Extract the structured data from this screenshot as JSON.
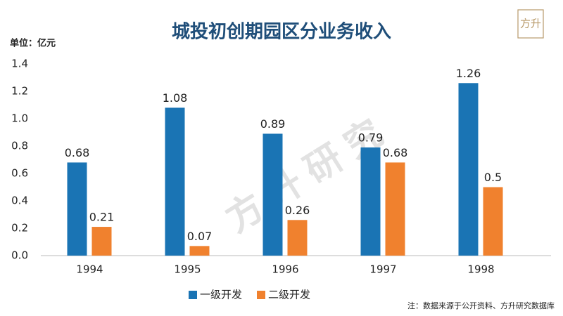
{
  "chart_data": {
    "type": "bar",
    "title": "城投初创期园区分业务收入",
    "unit_label": "单位：亿元",
    "categories": [
      "1994",
      "1995",
      "1996",
      "1997",
      "1998"
    ],
    "series": [
      {
        "name": "一级开发",
        "color": "#1a74b4",
        "values": [
          0.68,
          1.08,
          0.89,
          0.79,
          1.26
        ]
      },
      {
        "name": "二级开发",
        "color": "#f0812e",
        "values": [
          0.21,
          0.07,
          0.26,
          0.68,
          0.5
        ]
      }
    ],
    "ylim": [
      0,
      1.4
    ],
    "yticks": [
      {
        "value": 0,
        "label": "0.0"
      },
      0.2,
      0.4,
      0.6,
      0.8,
      {
        "value": 1,
        "label": "1.0"
      },
      1.2,
      1.4
    ],
    "grid": false,
    "legend": "bottom",
    "note": "注：数据来源于公开资料、方升研究数据库",
    "watermark": "方升研究",
    "logo": "方升"
  }
}
